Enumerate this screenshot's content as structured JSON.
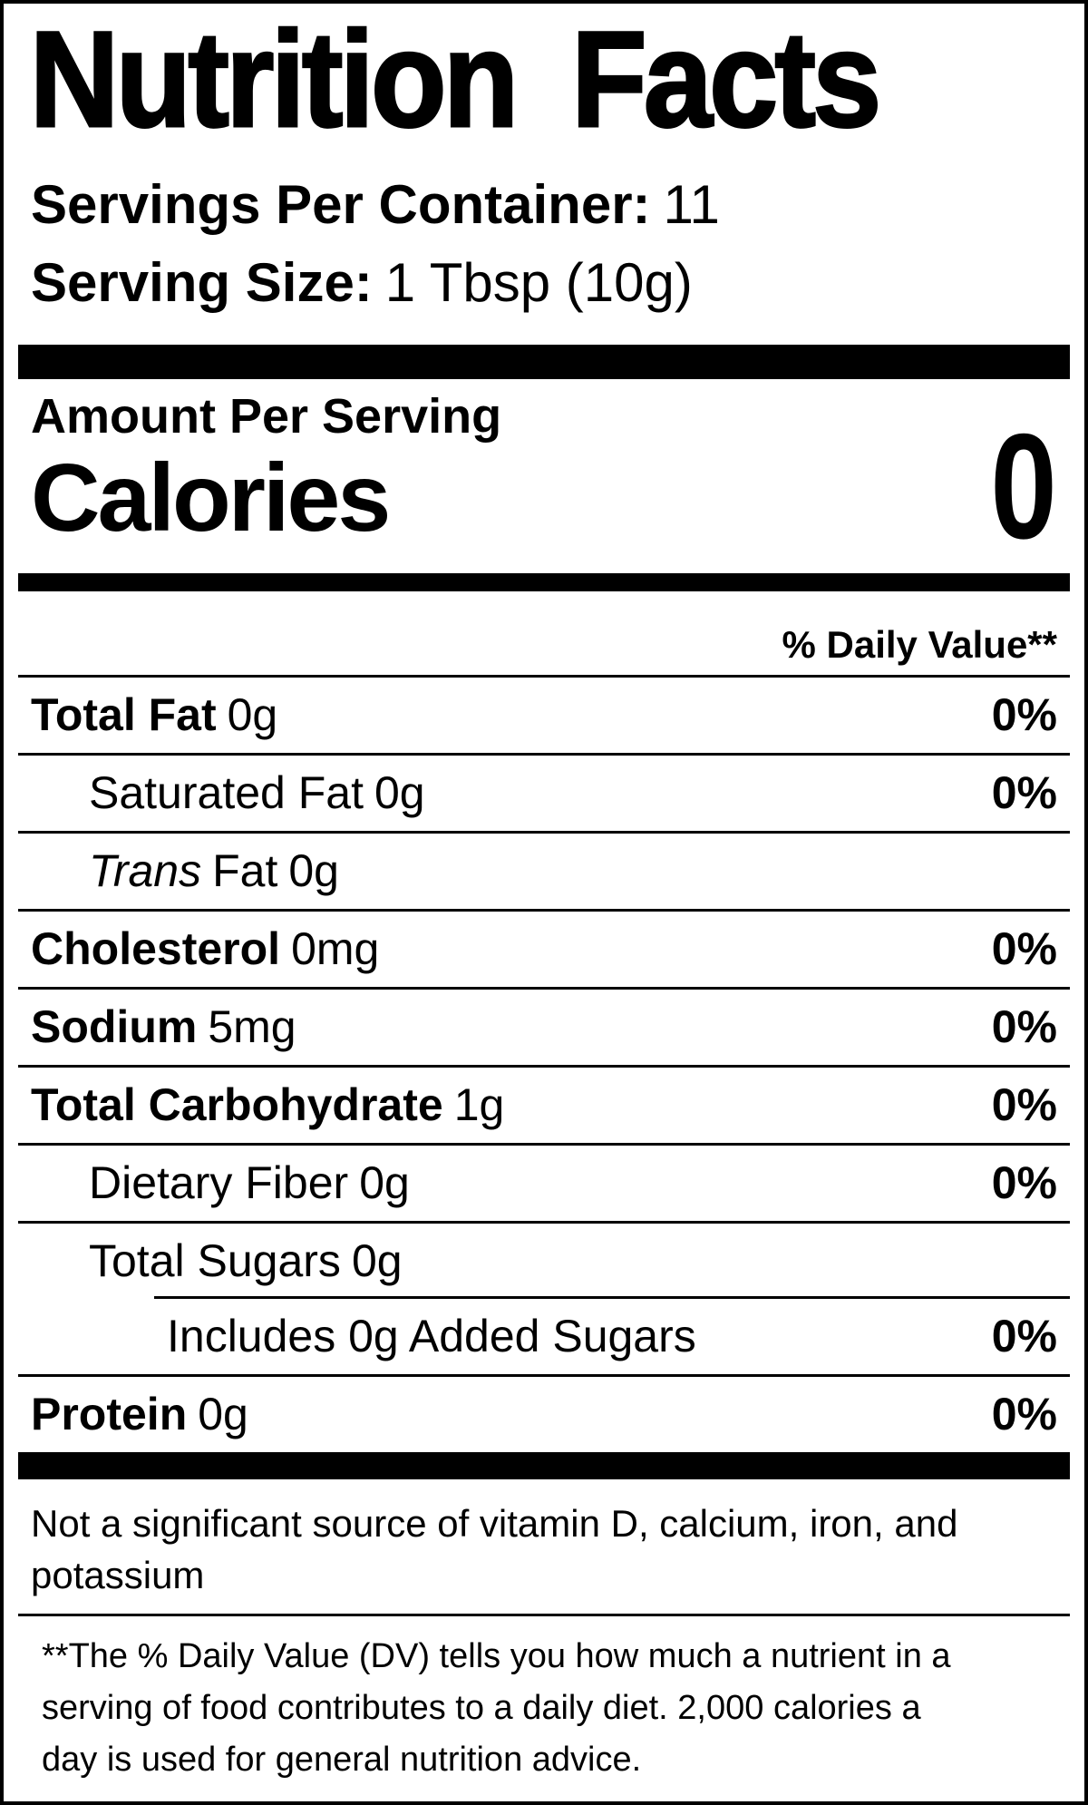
{
  "label": {
    "title": "Nutrition Facts",
    "servings_per_container": {
      "label": "Servings Per Container:",
      "value": "11"
    },
    "serving_size": {
      "label": "Serving Size:",
      "value": "1 Tbsp (10g)"
    },
    "amount_per_serving": "Amount Per Serving",
    "calories": {
      "label": "Calories",
      "value": "0"
    },
    "daily_value_header": "% Daily Value**",
    "nutrients": [
      {
        "name": "Total Fat",
        "name_bold": true,
        "amount": "0g",
        "dv": "0%",
        "indent": 0
      },
      {
        "name": "Saturated Fat",
        "name_bold": false,
        "amount": "0g",
        "dv": "0%",
        "indent": 1
      },
      {
        "name": "Fat",
        "name_italic_prefix": "Trans",
        "name_bold": false,
        "amount": "0g",
        "dv": "",
        "indent": 1
      },
      {
        "name": "Cholesterol",
        "name_bold": true,
        "amount": "0mg",
        "dv": "0%",
        "indent": 0
      },
      {
        "name": "Sodium",
        "name_bold": true,
        "amount": "5mg",
        "dv": "0%",
        "indent": 0
      },
      {
        "name": "Total Carbohydrate",
        "name_bold": true,
        "amount": "1g",
        "dv": "0%",
        "indent": 0
      },
      {
        "name": "Dietary Fiber",
        "name_bold": false,
        "amount": "0g",
        "dv": "0%",
        "indent": 1
      },
      {
        "name": "Total Sugars",
        "name_bold": false,
        "amount": "0g",
        "dv": "",
        "indent": 1,
        "no_bottom_border": true
      },
      {
        "name": "Includes 0g Added Sugars",
        "name_bold": false,
        "amount": "",
        "dv": "0%",
        "indent": 2,
        "indent_separator_above": true
      },
      {
        "name": "Protein",
        "name_bold": true,
        "amount": "0g",
        "dv": "0%",
        "indent": 0,
        "no_bottom_border": true
      }
    ],
    "not_significant_lines": [
      "Not a significant source of vitamin D, calcium, iron, and",
      "potassium"
    ],
    "footnote_lines": [
      "**The % Daily Value (DV) tells you how much a nutrient in a",
      "serving of food contributes to a daily diet. 2,000 calories a",
      "day is used for general nutrition advice."
    ],
    "colors": {
      "text": "#000000",
      "background": "#ffffff"
    }
  }
}
